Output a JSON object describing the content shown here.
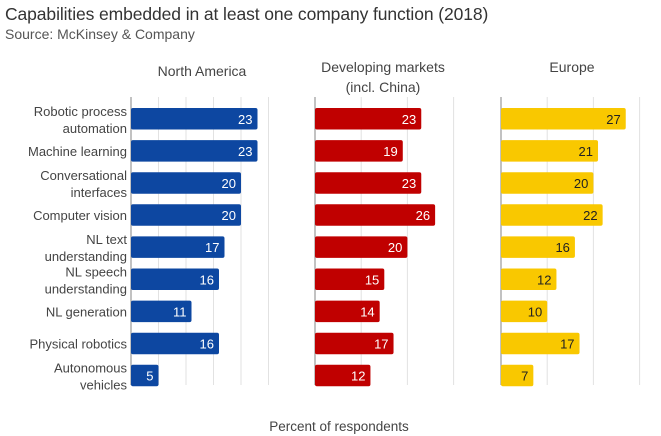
{
  "chart_data": {
    "type": "bar",
    "orientation": "horizontal",
    "title": "Capabilities embedded in at least one company function (2018)",
    "subtitle": "Source: McKinsey & Company",
    "xlabel": "Percent of respondents",
    "ylabel": "",
    "grid": true,
    "legend": "none",
    "categories": [
      [
        "Robotic process",
        "automation"
      ],
      [
        "Machine learning"
      ],
      [
        "Conversational",
        "interfaces"
      ],
      [
        "Computer vision"
      ],
      [
        "NL text",
        "understanding"
      ],
      [
        "NL speech",
        "understanding"
      ],
      [
        "NL generation"
      ],
      [
        "Physical robotics"
      ],
      [
        "Autonomous",
        "vehicles"
      ]
    ],
    "series": [
      {
        "name": "North America",
        "title_lines": [
          "North America"
        ],
        "color": "#0d47a1",
        "label_color": "#ffffff",
        "values": [
          23,
          23,
          20,
          20,
          17,
          16,
          11,
          16,
          5
        ],
        "xlim": [
          0,
          25
        ],
        "grid_step": 5
      },
      {
        "name": "Developing markets (incl. China)",
        "title_lines": [
          "Developing markets",
          "(incl. China)"
        ],
        "color": "#c00000",
        "label_color": "#ffffff",
        "values": [
          23,
          19,
          23,
          26,
          20,
          15,
          14,
          17,
          12
        ],
        "xlim": [
          0,
          30
        ],
        "grid_step": 10
      },
      {
        "name": "Europe",
        "title_lines": [
          "Europe"
        ],
        "color": "#f9c800",
        "label_color": "#222222",
        "values": [
          27,
          21,
          20,
          22,
          16,
          12,
          10,
          17,
          7
        ],
        "xlim": [
          0,
          30
        ],
        "grid_step": 10
      }
    ]
  }
}
